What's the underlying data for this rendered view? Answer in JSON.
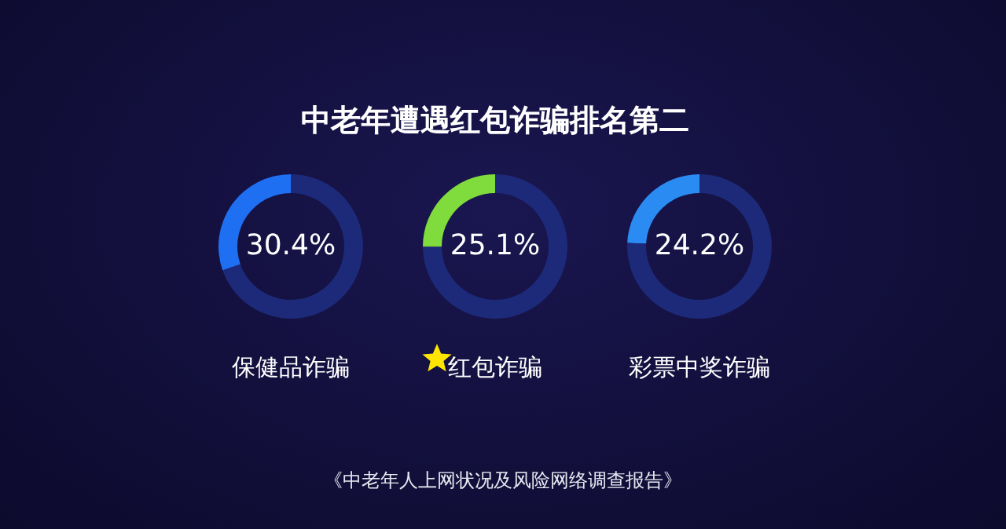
{
  "chart_data": [
    {
      "type": "donut",
      "title": "中老年遭遇红包诈骗排名第二",
      "xlabel": "保健品诈骗",
      "categories": [
        null,
        null
      ],
      "values": [
        30.4,
        69.6
      ],
      "colors": [
        "#1f6ff2",
        "#1d2a7a"
      ],
      "value_labels": [
        "30.4%",
        null
      ]
    },
    {
      "type": "donut",
      "xlabel": "红包诈骗",
      "categories": [
        null,
        null
      ],
      "values": [
        25.1,
        74.9
      ],
      "colors": [
        "#7fdc3c",
        "#1d2a7a"
      ],
      "value_labels": [
        "25.1%",
        null
      ]
    },
    {
      "type": "donut",
      "xlabel": "彩票中奖诈骗",
      "categories": [
        null,
        null
      ],
      "values": [
        24.2,
        75.8
      ],
      "colors": [
        "#2a8cf2",
        "#1d2a7a"
      ],
      "value_labels": [
        "24.2%",
        null
      ],
      "annotations": [
        "《中老年人上网状况及风险网络调查报告》"
      ]
    }
  ]
}
